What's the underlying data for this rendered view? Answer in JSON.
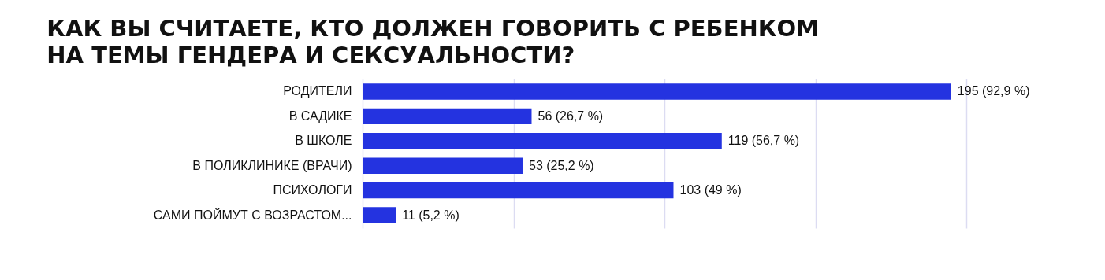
{
  "chart_data": {
    "type": "bar",
    "orientation": "horizontal",
    "title": "КАК ВЫ СЧИТАЕТЕ, КТО ДОЛЖЕН ГОВОРИТЬ С РЕБЕНКОМ\nНА ТЕМЫ ГЕНДЕРА И СЕКСУАЛЬНОСТИ?",
    "categories": [
      "РОДИТЕЛИ",
      "В САДИКЕ",
      "В ШКОЛЕ",
      "В ПОЛИКЛИНИКЕ (ВРАЧИ)",
      "ПСИХОЛОГИ",
      "САМИ ПОЙМУТ С ВОЗРАСТОМ..."
    ],
    "values": [
      195,
      56,
      119,
      53,
      103,
      11
    ],
    "value_labels": [
      "195 (92,9 %)",
      "56 (26,7 %)",
      "119 (56,7 %)",
      "53 (25,2 %)",
      "103 (49 %)",
      "11 (5,2 %)"
    ],
    "color": "#2433e0",
    "xlim": [
      0,
      200
    ],
    "xticks": [
      {
        "value": 0,
        "label": null
      },
      {
        "value": 50,
        "label": null
      },
      {
        "value": 100,
        "label": null
      },
      {
        "value": 150,
        "label": null
      },
      {
        "value": 200,
        "label": null
      }
    ],
    "grid": "x",
    "tick_labels": "y"
  }
}
